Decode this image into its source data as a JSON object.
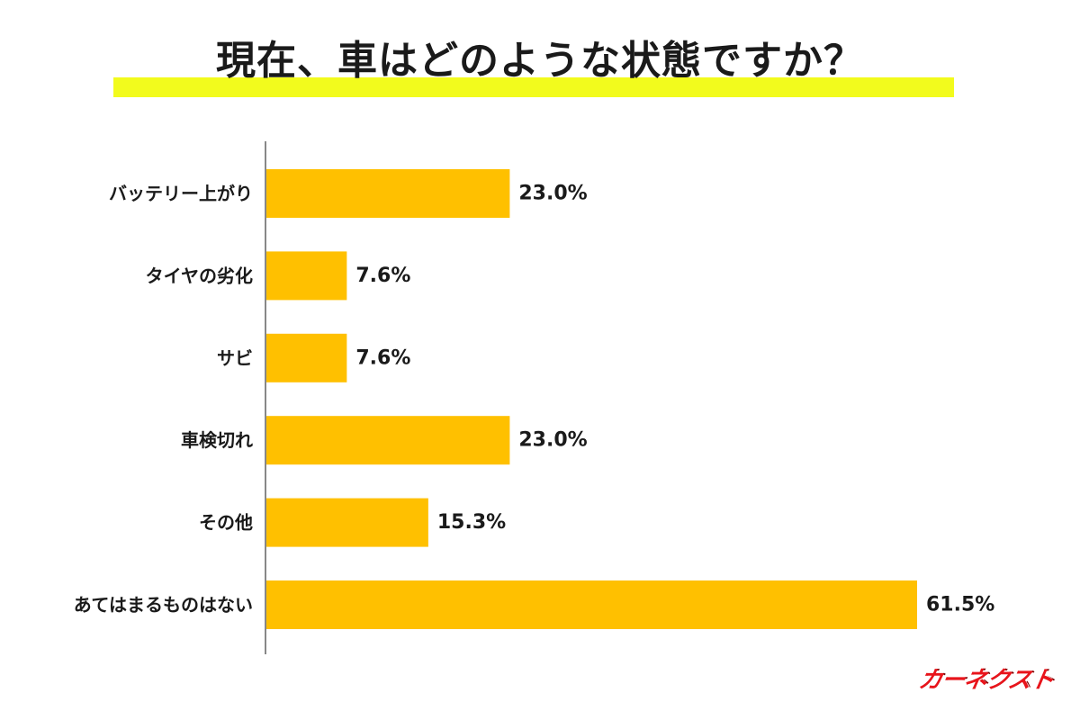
{
  "title": "現在、車はどのような状態ですか？",
  "colors": {
    "bar": "#ffc000",
    "title_highlight": "#f2fb1d",
    "axis": "#888888",
    "text": "#1a1a1a",
    "logo": "#e8141b"
  },
  "logo": {
    "text": "カーネクスト"
  },
  "chart_data": {
    "type": "bar",
    "orientation": "horizontal",
    "categories": [
      "バッテリー上がり",
      "タイヤの劣化",
      "サビ",
      "車検切れ",
      "その他",
      "あてはまるものはない"
    ],
    "values": [
      23.0,
      7.6,
      7.6,
      23.0,
      15.3,
      61.5
    ],
    "value_labels": [
      "23.0%",
      "7.6%",
      "7.6%",
      "23.0%",
      "15.3%",
      "61.5%"
    ],
    "xlim": [
      0,
      61.5
    ],
    "grid": false,
    "legend": "none"
  }
}
